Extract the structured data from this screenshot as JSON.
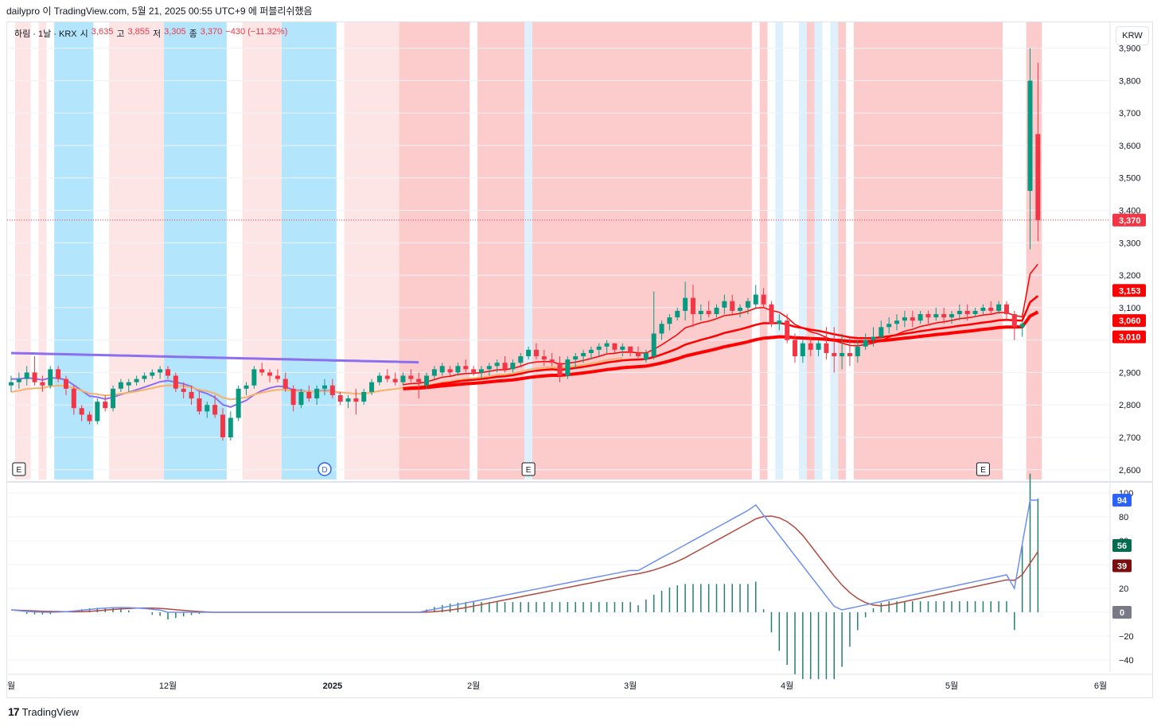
{
  "header": {
    "text": "dailypro 이 TradingView.com, 5월 21, 2025 00:55 UTC+9 에 퍼블리쉬했음"
  },
  "legend": {
    "symbol": "하림 · 1날 · KRX",
    "o_label": "시",
    "o": "3,635",
    "h_label": "고",
    "h": "3,855",
    "l_label": "저",
    "l": "3,305",
    "c_label": "종",
    "c": "3,370",
    "change": "−430 (−11.32%)"
  },
  "currency": "KRW",
  "footer": {
    "logo_mark": "17",
    "logo_text": "TradingView"
  },
  "colors": {
    "up": "#089981",
    "down": "#f23645",
    "ma_purple": "#8c6ff0",
    "ma_orange": "#f6b26b",
    "ma_red": "#ff0000",
    "osc_blue": "#6e8ff0",
    "osc_brown": "#b04a3f",
    "bg_pink_light": "#fde5e6",
    "bg_pink": "#fccbcc",
    "bg_cyan": "#b3e5fc",
    "bg_cyan_light": "#ddf0fc"
  },
  "chart_data": [
    {
      "type": "candlestick",
      "y_axis_ticks": [
        "3,900",
        "3,800",
        "3,700",
        "3,600",
        "3,500",
        "3,400",
        "3,300",
        "3,200",
        "3,100",
        "2,900",
        "2,800",
        "2,700",
        "2,600"
      ],
      "ylim": [
        2570,
        3980
      ],
      "x_ticks": [
        "월",
        "12월",
        "2025",
        "2월",
        "3월",
        "4월",
        "5월",
        "6월"
      ],
      "price_labels": [
        {
          "label": "3,370",
          "value": 3370,
          "color": "#f23645"
        },
        {
          "label": "3,153",
          "value": 3153,
          "color": "#ff0000"
        },
        {
          "label": "3,060",
          "value": 3060,
          "color": "#ff0000"
        },
        {
          "label": "3,010",
          "value": 3010,
          "color": "#ff0000"
        }
      ],
      "event_markers": [
        {
          "label": "E",
          "x_index": 1
        },
        {
          "label": "D",
          "x_index": 40
        },
        {
          "label": "E",
          "x_index": 66
        },
        {
          "label": "E",
          "x_index": 124
        }
      ],
      "candles": [
        [
          2860,
          2890,
          2840,
          2870
        ],
        [
          2870,
          2900,
          2850,
          2880
        ],
        [
          2880,
          2920,
          2860,
          2900
        ],
        [
          2900,
          2950,
          2860,
          2870
        ],
        [
          2870,
          2890,
          2840,
          2860
        ],
        [
          2860,
          2920,
          2850,
          2910
        ],
        [
          2910,
          2920,
          2870,
          2880
        ],
        [
          2880,
          2890,
          2830,
          2850
        ],
        [
          2850,
          2860,
          2770,
          2790
        ],
        [
          2790,
          2800,
          2750,
          2770
        ],
        [
          2770,
          2780,
          2740,
          2750
        ],
        [
          2750,
          2820,
          2740,
          2810
        ],
        [
          2810,
          2830,
          2780,
          2790
        ],
        [
          2790,
          2860,
          2780,
          2850
        ],
        [
          2850,
          2880,
          2840,
          2870
        ],
        [
          2860,
          2880,
          2840,
          2870
        ],
        [
          2870,
          2890,
          2860,
          2880
        ],
        [
          2880,
          2900,
          2870,
          2890
        ],
        [
          2890,
          2910,
          2880,
          2900
        ],
        [
          2900,
          2920,
          2880,
          2910
        ],
        [
          2910,
          2920,
          2880,
          2890
        ],
        [
          2890,
          2900,
          2840,
          2850
        ],
        [
          2850,
          2870,
          2820,
          2840
        ],
        [
          2840,
          2860,
          2800,
          2820
        ],
        [
          2820,
          2840,
          2770,
          2780
        ],
        [
          2780,
          2810,
          2760,
          2800
        ],
        [
          2800,
          2830,
          2760,
          2770
        ],
        [
          2770,
          2790,
          2690,
          2700
        ],
        [
          2700,
          2780,
          2690,
          2760
        ],
        [
          2760,
          2860,
          2750,
          2850
        ],
        [
          2850,
          2870,
          2830,
          2860
        ],
        [
          2860,
          2920,
          2850,
          2910
        ],
        [
          2910,
          2930,
          2890,
          2900
        ],
        [
          2900,
          2910,
          2870,
          2890
        ],
        [
          2890,
          2910,
          2870,
          2880
        ],
        [
          2880,
          2900,
          2840,
          2850
        ],
        [
          2850,
          2860,
          2780,
          2800
        ],
        [
          2800,
          2850,
          2790,
          2840
        ],
        [
          2840,
          2860,
          2810,
          2820
        ],
        [
          2820,
          2860,
          2800,
          2850
        ],
        [
          2850,
          2880,
          2830,
          2860
        ],
        [
          2860,
          2880,
          2820,
          2830
        ],
        [
          2830,
          2840,
          2800,
          2810
        ],
        [
          2810,
          2830,
          2790,
          2820
        ],
        [
          2820,
          2850,
          2770,
          2810
        ],
        [
          2810,
          2850,
          2800,
          2840
        ],
        [
          2840,
          2880,
          2830,
          2870
        ],
        [
          2870,
          2900,
          2860,
          2890
        ],
        [
          2890,
          2910,
          2870,
          2880
        ],
        [
          2880,
          2900,
          2860,
          2870
        ],
        [
          2870,
          2900,
          2860,
          2890
        ],
        [
          2890,
          2910,
          2870,
          2880
        ],
        [
          2880,
          2900,
          2820,
          2870
        ],
        [
          2860,
          2900,
          2850,
          2890
        ],
        [
          2890,
          2920,
          2880,
          2910
        ],
        [
          2900,
          2930,
          2890,
          2920
        ],
        [
          2910,
          2920,
          2890,
          2900
        ],
        [
          2900,
          2930,
          2890,
          2920
        ],
        [
          2920,
          2940,
          2900,
          2910
        ],
        [
          2910,
          2920,
          2890,
          2900
        ],
        [
          2900,
          2920,
          2880,
          2910
        ],
        [
          2910,
          2930,
          2890,
          2920
        ],
        [
          2920,
          2940,
          2900,
          2930
        ],
        [
          2930,
          2950,
          2900,
          2910
        ],
        [
          2910,
          2940,
          2900,
          2930
        ],
        [
          2930,
          2960,
          2920,
          2950
        ],
        [
          2950,
          2980,
          2940,
          2970
        ],
        [
          2970,
          2990,
          2940,
          2950
        ],
        [
          2950,
          2970,
          2920,
          2940
        ],
        [
          2940,
          2960,
          2920,
          2930
        ],
        [
          2930,
          2950,
          2870,
          2890
        ],
        [
          2890,
          2950,
          2880,
          2940
        ],
        [
          2940,
          2960,
          2910,
          2950
        ],
        [
          2950,
          2970,
          2930,
          2960
        ],
        [
          2960,
          2980,
          2940,
          2970
        ],
        [
          2970,
          2990,
          2950,
          2980
        ],
        [
          2980,
          3000,
          2960,
          2990
        ],
        [
          2990,
          2990,
          2960,
          2970
        ],
        [
          2970,
          2990,
          2950,
          2980
        ],
        [
          2980,
          2980,
          2950,
          2960
        ],
        [
          2960,
          2980,
          2940,
          2950
        ],
        [
          2940,
          2970,
          2930,
          2960
        ],
        [
          2950,
          3150,
          2940,
          3020
        ],
        [
          3020,
          3060,
          3000,
          3050
        ],
        [
          3050,
          3080,
          3030,
          3070
        ],
        [
          3070,
          3100,
          3060,
          3090
        ],
        [
          3090,
          3180,
          3060,
          3130
        ],
        [
          3130,
          3170,
          3040,
          3080
        ],
        [
          3080,
          3110,
          3060,
          3090
        ],
        [
          3090,
          3120,
          3070,
          3080
        ],
        [
          3080,
          3110,
          3070,
          3100
        ],
        [
          3100,
          3140,
          3080,
          3120
        ],
        [
          3120,
          3140,
          3080,
          3090
        ],
        [
          3090,
          3110,
          3070,
          3100
        ],
        [
          3100,
          3130,
          3080,
          3120
        ],
        [
          3110,
          3170,
          3100,
          3140
        ],
        [
          3140,
          3160,
          3100,
          3110
        ],
        [
          3110,
          3120,
          3040,
          3050
        ],
        [
          3050,
          3080,
          3030,
          3060
        ],
        [
          3060,
          3080,
          2990,
          3000
        ],
        [
          3000,
          3020,
          2930,
          2950
        ],
        [
          2950,
          3000,
          2930,
          2990
        ],
        [
          2990,
          3010,
          2950,
          2970
        ],
        [
          2970,
          3000,
          2950,
          2990
        ],
        [
          2990,
          3040,
          2940,
          2960
        ],
        [
          2960,
          3040,
          2900,
          2950
        ],
        [
          2950,
          3020,
          2910,
          2960
        ],
        [
          2960,
          3010,
          2920,
          2950
        ],
        [
          2950,
          3000,
          2930,
          2980
        ],
        [
          2980,
          3020,
          2970,
          3000
        ],
        [
          3000,
          3040,
          2980,
          3010
        ],
        [
          3010,
          3060,
          3000,
          3040
        ],
        [
          3040,
          3070,
          3020,
          3050
        ],
        [
          3050,
          3080,
          3030,
          3060
        ],
        [
          3060,
          3090,
          3040,
          3070
        ],
        [
          3070,
          3090,
          3040,
          3060
        ],
        [
          3060,
          3090,
          3050,
          3080
        ],
        [
          3080,
          3090,
          3050,
          3070
        ],
        [
          3070,
          3100,
          3060,
          3080
        ],
        [
          3080,
          3100,
          3050,
          3070
        ],
        [
          3070,
          3090,
          3050,
          3080
        ],
        [
          3080,
          3110,
          3060,
          3090
        ],
        [
          3090,
          3110,
          3060,
          3080
        ],
        [
          3080,
          3100,
          3070,
          3090
        ],
        [
          3090,
          3110,
          3080,
          3100
        ],
        [
          3100,
          3120,
          3080,
          3090
        ],
        [
          3090,
          3120,
          3080,
          3110
        ],
        [
          3110,
          3120,
          3060,
          3080
        ],
        [
          3080,
          3090,
          3000,
          3040
        ],
        [
          3040,
          3060,
          3010,
          3050
        ],
        [
          3460,
          3900,
          3280,
          3800
        ],
        [
          3635,
          3855,
          3305,
          3370
        ]
      ]
    },
    {
      "type": "oscillator",
      "y_axis_ticks": [
        "100",
        "80",
        "60",
        "40",
        "20",
        "−20",
        "−40"
      ],
      "ylim": [
        -50,
        100
      ],
      "value_labels": [
        {
          "label": "94",
          "value": 94,
          "color": "#2962ff"
        },
        {
          "label": "56",
          "value": 56,
          "color": "#006b4e"
        },
        {
          "label": "39",
          "value": 39,
          "color": "#7a0e0e"
        },
        {
          "label": "0",
          "value": 0,
          "color": "#787b86"
        }
      ]
    }
  ]
}
